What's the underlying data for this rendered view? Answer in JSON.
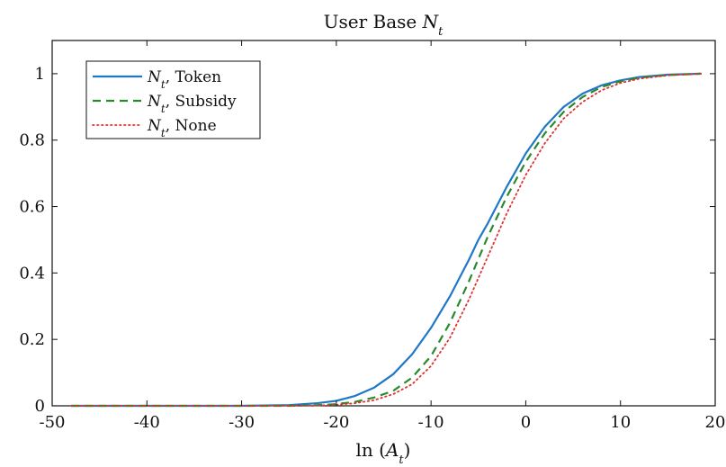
{
  "chart_data": {
    "type": "line",
    "title": {
      "prefix": "User Base ",
      "symbol": "N",
      "subscript": "t"
    },
    "xlabel": {
      "prefix": "ln (",
      "symbol": "A",
      "subscript": "t",
      "suffix": ")"
    },
    "xlim": [
      -50,
      20
    ],
    "ylim": [
      0,
      1.1
    ],
    "xticks": [
      -50,
      -40,
      -30,
      -20,
      -10,
      0,
      10,
      20
    ],
    "yticks": [
      0,
      0.2,
      0.4,
      0.6,
      0.8,
      1
    ],
    "xtick_labels": [
      "-50",
      "-40",
      "-30",
      "-20",
      "-10",
      "0",
      "10",
      "20"
    ],
    "ytick_labels": [
      "0",
      "0.2",
      "0.4",
      "0.6",
      "0.8",
      "1"
    ],
    "grid": false,
    "legend_position": "top-left",
    "series": [
      {
        "name": {
          "symbol": "N",
          "subscript": "t",
          "suffix": ", Token"
        },
        "color": "#1f77c8",
        "style": "solid",
        "x": [
          -48,
          -40,
          -30,
          -25,
          -22,
          -20,
          -18,
          -16,
          -14,
          -12,
          -10,
          -8,
          -6,
          -5,
          -4,
          -2,
          0,
          2,
          4,
          6,
          8,
          10,
          12,
          15,
          18.5
        ],
        "y": [
          0,
          0,
          0,
          0.002,
          0.008,
          0.015,
          0.03,
          0.055,
          0.095,
          0.155,
          0.235,
          0.33,
          0.44,
          0.5,
          0.55,
          0.66,
          0.76,
          0.84,
          0.9,
          0.94,
          0.965,
          0.98,
          0.99,
          0.997,
          1
        ]
      },
      {
        "name": {
          "symbol": "N",
          "subscript": "t",
          "suffix": ", Subsidy"
        },
        "color": "#2a8a2a",
        "style": "dashed",
        "x": [
          -48,
          -40,
          -30,
          -25,
          -22,
          -20,
          -18,
          -16,
          -14,
          -12,
          -10,
          -8,
          -6,
          -4,
          -2,
          0,
          2,
          4,
          6,
          8,
          10,
          12,
          15,
          18.5
        ],
        "y": [
          0,
          0,
          0,
          0,
          0.002,
          0.005,
          0.012,
          0.025,
          0.045,
          0.085,
          0.15,
          0.25,
          0.375,
          0.51,
          0.63,
          0.735,
          0.82,
          0.885,
          0.93,
          0.96,
          0.977,
          0.988,
          0.996,
          1
        ]
      },
      {
        "name": {
          "symbol": "N",
          "subscript": "t",
          "suffix": ", None"
        },
        "color": "#e03030",
        "style": "dotted",
        "x": [
          -48,
          -40,
          -30,
          -25,
          -22,
          -20,
          -18,
          -16,
          -14,
          -12,
          -10,
          -8,
          -6,
          -4,
          -2,
          0,
          2,
          4,
          6,
          8,
          10,
          12,
          15,
          18.5
        ],
        "y": [
          0,
          0,
          0,
          0,
          0.001,
          0.003,
          0.008,
          0.017,
          0.035,
          0.065,
          0.12,
          0.205,
          0.32,
          0.45,
          0.58,
          0.695,
          0.79,
          0.865,
          0.915,
          0.95,
          0.972,
          0.985,
          0.995,
          1
        ]
      }
    ]
  }
}
